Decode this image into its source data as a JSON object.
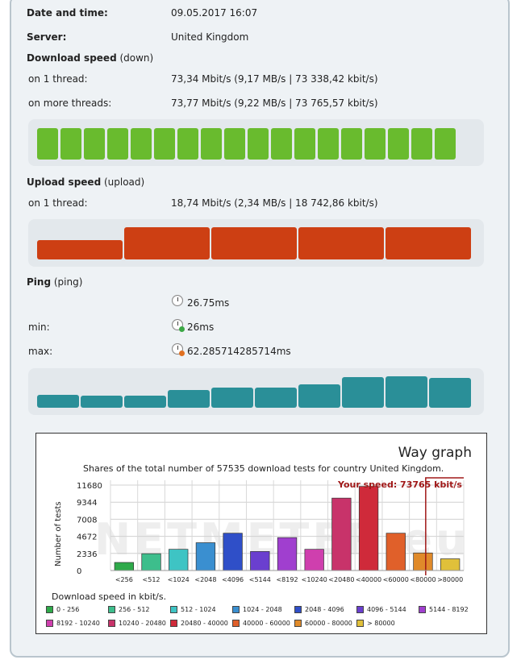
{
  "info": {
    "datetime_label": "Date and time:",
    "datetime_value": "09.05.2017 16:07",
    "server_label": "Server:",
    "server_value": "United Kingdom"
  },
  "download": {
    "title": "Download speed",
    "title_sub": " (down)",
    "one_thread_label": "on 1 thread:",
    "one_thread_value": "73,34 Mbit/s (9,17 MB/s | 73 338,42 kbit/s)",
    "more_threads_label": "on more threads:",
    "more_threads_value": "73,77 Mbit/s (9,22 MB/s | 73 765,57 kbit/s)",
    "bar_count": 18
  },
  "upload": {
    "title": "Upload speed",
    "title_sub": " (upload)",
    "one_thread_label": "on 1 thread:",
    "one_thread_value": "18,74 Mbit/s (2,34 MB/s | 18 742,86 kbit/s)",
    "bar_levels": [
      0.6,
      1,
      1,
      1,
      1
    ]
  },
  "ping": {
    "title": "Ping",
    "title_sub": " (ping)",
    "avg_value": "26.75ms",
    "min_label": "min:",
    "min_value": "26ms",
    "max_label": "max:",
    "max_value": "62.285714285714ms",
    "bar_levels": [
      0.4,
      0.38,
      0.38,
      0.55,
      0.62,
      0.62,
      0.72,
      0.95,
      0.98,
      0.92
    ]
  },
  "colors": {
    "download": "#69bb2e",
    "upload": "#cd3f13",
    "ping": "#2a8f98"
  },
  "chart_data": {
    "type": "bar",
    "title": "Way graph",
    "subtitle": "Shares of the total number of 57535 download tests for country United Kingdom.",
    "ylabel": "Number of tests",
    "xlabel": "Download speed in kbit/s.",
    "watermark": "NETMETER.eu",
    "your_speed": "Your speed: 73765 kbit/s",
    "yticks": [
      "11680",
      "9344",
      "7008",
      "4672",
      "2336",
      "0"
    ],
    "ylim": [
      0,
      11680
    ],
    "categories": [
      "<256",
      "<512",
      "<1024",
      "<2048",
      "<4096",
      "<5144",
      "<8192",
      "<10240",
      "<20480",
      "<40000",
      "<60000",
      "<80000",
      ">80000"
    ],
    "values": [
      1100,
      2300,
      2900,
      3800,
      5100,
      2600,
      4500,
      2900,
      9900,
      11500,
      5100,
      2400,
      1600
    ],
    "bar_colors": [
      "#2eaa4a",
      "#3dbe8c",
      "#3ec4c4",
      "#3a8fd0",
      "#2f4fc8",
      "#6a3fcf",
      "#a03fcf",
      "#cf3fae",
      "#c8336a",
      "#cf2a3a",
      "#e0602a",
      "#e08a2a",
      "#e0c03a"
    ],
    "legend": [
      {
        "label": "0 - 256",
        "color": "#2eaa4a"
      },
      {
        "label": "256 - 512",
        "color": "#3dbe8c"
      },
      {
        "label": "512 - 1024",
        "color": "#3ec4c4"
      },
      {
        "label": "1024 - 2048",
        "color": "#3a8fd0"
      },
      {
        "label": "2048 - 4096",
        "color": "#2f4fc8"
      },
      {
        "label": "4096 - 5144",
        "color": "#6a3fcf"
      },
      {
        "label": "5144 - 8192",
        "color": "#a03fcf"
      },
      {
        "label": "8192 - 10240",
        "color": "#cf3fae"
      },
      {
        "label": "10240 - 20480",
        "color": "#c8336a"
      },
      {
        "label": "20480 - 40000",
        "color": "#cf2a3a"
      },
      {
        "label": "40000 - 60000",
        "color": "#e0602a"
      },
      {
        "label": "60000 - 80000",
        "color": "#e08a2a"
      },
      {
        "label": "> 80000",
        "color": "#e0c03a"
      }
    ]
  }
}
